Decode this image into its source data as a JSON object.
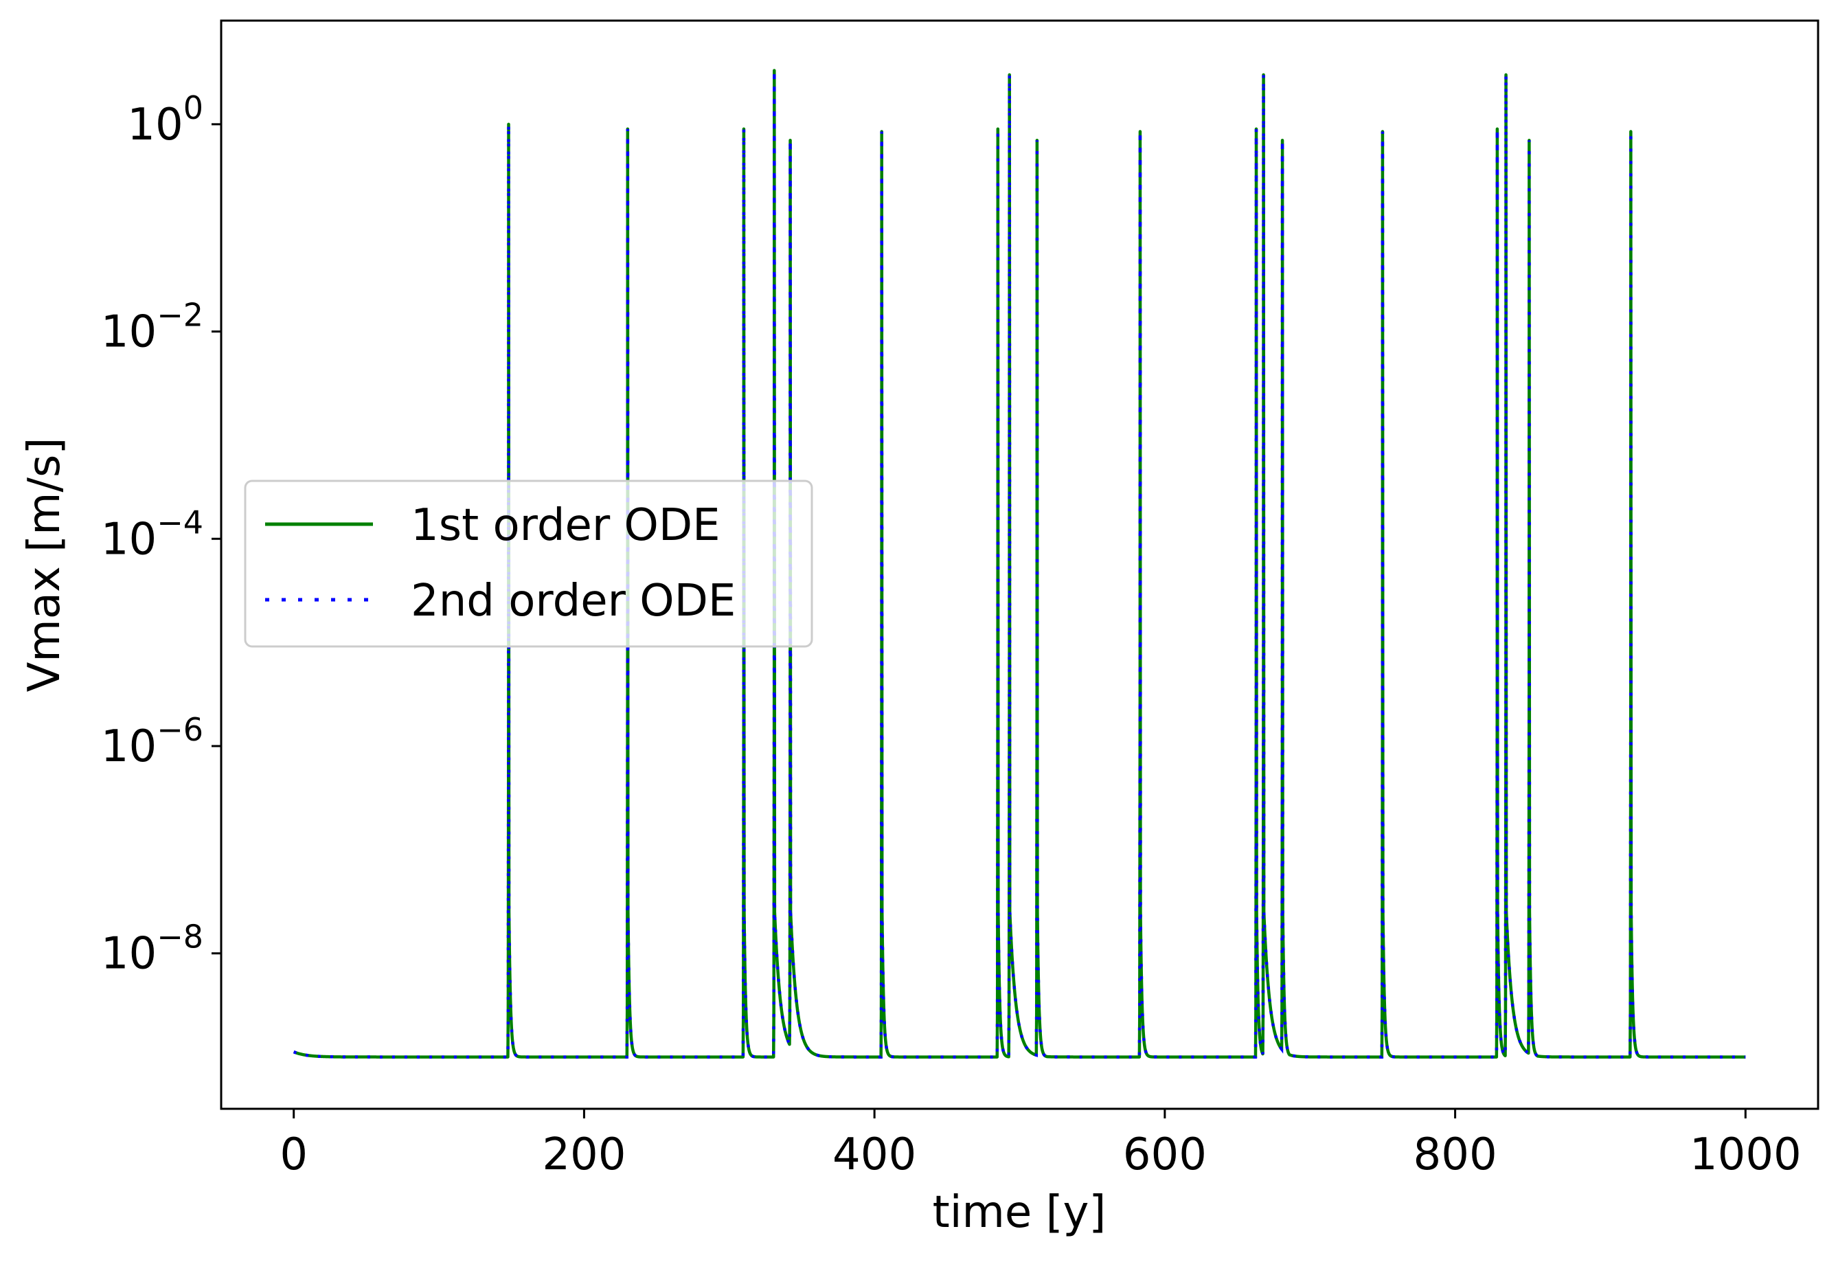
{
  "chart_data": {
    "type": "line",
    "title": "",
    "xlabel": "time [y]",
    "ylabel": "Vmax [m/s]",
    "xlim": [
      -50,
      1050
    ],
    "ylim_log10": [
      -9.5,
      1.0
    ],
    "yscale": "log",
    "grid": false,
    "legend_position": "center-left",
    "x_ticks": [
      {
        "value": 0,
        "label": "0"
      },
      {
        "value": 200,
        "label": "200"
      },
      {
        "value": 400,
        "label": "400"
      },
      {
        "value": 600,
        "label": "600"
      },
      {
        "value": 800,
        "label": "800"
      },
      {
        "value": 1000,
        "label": "1000"
      }
    ],
    "y_ticks": [
      {
        "exp": 0,
        "base": "10",
        "power": "0"
      },
      {
        "exp": -2,
        "base": "10",
        "power": "−2"
      },
      {
        "exp": -4,
        "base": "10",
        "power": "−4"
      },
      {
        "exp": -6,
        "base": "10",
        "power": "−6"
      },
      {
        "exp": -8,
        "base": "10",
        "power": "−8"
      }
    ],
    "baseline": 1e-09,
    "x_range": [
      0,
      1000
    ],
    "events": [
      {
        "t": 148,
        "peak": 1.0,
        "decay": "fast"
      },
      {
        "t": 230,
        "peak": 0.9,
        "decay": "fast"
      },
      {
        "t": 310,
        "peak": 0.9,
        "decay": "fast"
      },
      {
        "t": 331,
        "peak": 3.3,
        "decay": "slow"
      },
      {
        "t": 342,
        "peak": 0.7,
        "decay": "slow"
      },
      {
        "t": 405,
        "peak": 0.85,
        "decay": "fast"
      },
      {
        "t": 485,
        "peak": 0.9,
        "decay": "fast"
      },
      {
        "t": 493,
        "peak": 3.0,
        "decay": "slow"
      },
      {
        "t": 512,
        "peak": 0.7,
        "decay": "fast"
      },
      {
        "t": 583,
        "peak": 0.85,
        "decay": "fast"
      },
      {
        "t": 663,
        "peak": 0.9,
        "decay": "fast"
      },
      {
        "t": 668,
        "peak": 3.0,
        "decay": "slow"
      },
      {
        "t": 681,
        "peak": 0.7,
        "decay": "fast"
      },
      {
        "t": 750,
        "peak": 0.85,
        "decay": "fast"
      },
      {
        "t": 829,
        "peak": 0.9,
        "decay": "fast"
      },
      {
        "t": 835,
        "peak": 3.0,
        "decay": "slow"
      },
      {
        "t": 851,
        "peak": 0.7,
        "decay": "fast"
      },
      {
        "t": 921,
        "peak": 0.85,
        "decay": "fast"
      }
    ],
    "series": [
      {
        "name": "1st order ODE",
        "color": "#008000",
        "style": "solid"
      },
      {
        "name": "2nd order ODE",
        "color": "#0000ff",
        "style": "dotted"
      }
    ]
  }
}
